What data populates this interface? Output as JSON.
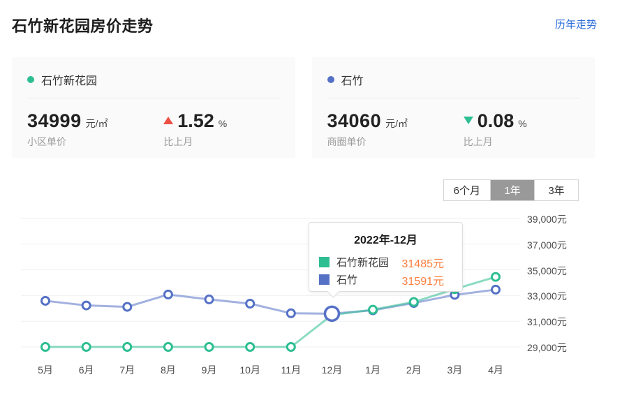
{
  "header": {
    "title": "石竹新花园房价走势",
    "link": "历年走势"
  },
  "cards": [
    {
      "name": "石竹新花园",
      "dot_color": "#2dbe92",
      "price": "34999",
      "unit": "元/㎡",
      "price_label": "小区单价",
      "trend": "up",
      "trend_color": "#ec4f44",
      "change": "1.52",
      "change_unit": "%",
      "change_label": "比上月"
    },
    {
      "name": "石竹",
      "dot_color": "#5571c6",
      "price": "34060",
      "unit": "元/㎡",
      "price_label": "商圈单价",
      "trend": "down",
      "trend_color": "#2dbe92",
      "change": "0.08",
      "change_unit": "%",
      "change_label": "比上月"
    }
  ],
  "tabs": [
    {
      "label": "6个月",
      "active": false
    },
    {
      "label": "1年",
      "active": true
    },
    {
      "label": "3年",
      "active": false
    }
  ],
  "tooltip": {
    "title": "2022年-12月",
    "value_color": "#fb7e3e",
    "rows": [
      {
        "label": "石竹新花园",
        "value": "31485元",
        "color": "#2dbe92"
      },
      {
        "label": "石竹",
        "value": "31591元",
        "color": "#5571c6"
      }
    ]
  },
  "chart_data": {
    "type": "line",
    "title": "石竹新花园房价走势 1年",
    "categories": [
      "5月",
      "6月",
      "7月",
      "8月",
      "9月",
      "10月",
      "11月",
      "12月",
      "1月",
      "2月",
      "3月",
      "4月"
    ],
    "series": [
      {
        "name": "石竹新花园",
        "color": "#2dbe92",
        "values": [
          29000,
          29000,
          29000,
          29000,
          29000,
          29000,
          29000,
          31485,
          31900,
          32500,
          33500,
          34450
        ]
      },
      {
        "name": "石竹",
        "color": "#5571c6",
        "values": [
          32590,
          32230,
          32120,
          33080,
          32700,
          32370,
          31620,
          31591,
          31850,
          32420,
          33050,
          33460
        ]
      }
    ],
    "y_ticks": [
      "39,000元",
      "37,000元",
      "35,000元",
      "33,000元",
      "31,000元",
      "29,000元"
    ],
    "y_tick_values": [
      39000,
      37000,
      35000,
      33000,
      31000,
      29000
    ],
    "ylim": [
      29000,
      39000
    ],
    "grid": true,
    "legend_position": "none",
    "hover": {
      "series": "石竹",
      "point_index": 7
    }
  }
}
